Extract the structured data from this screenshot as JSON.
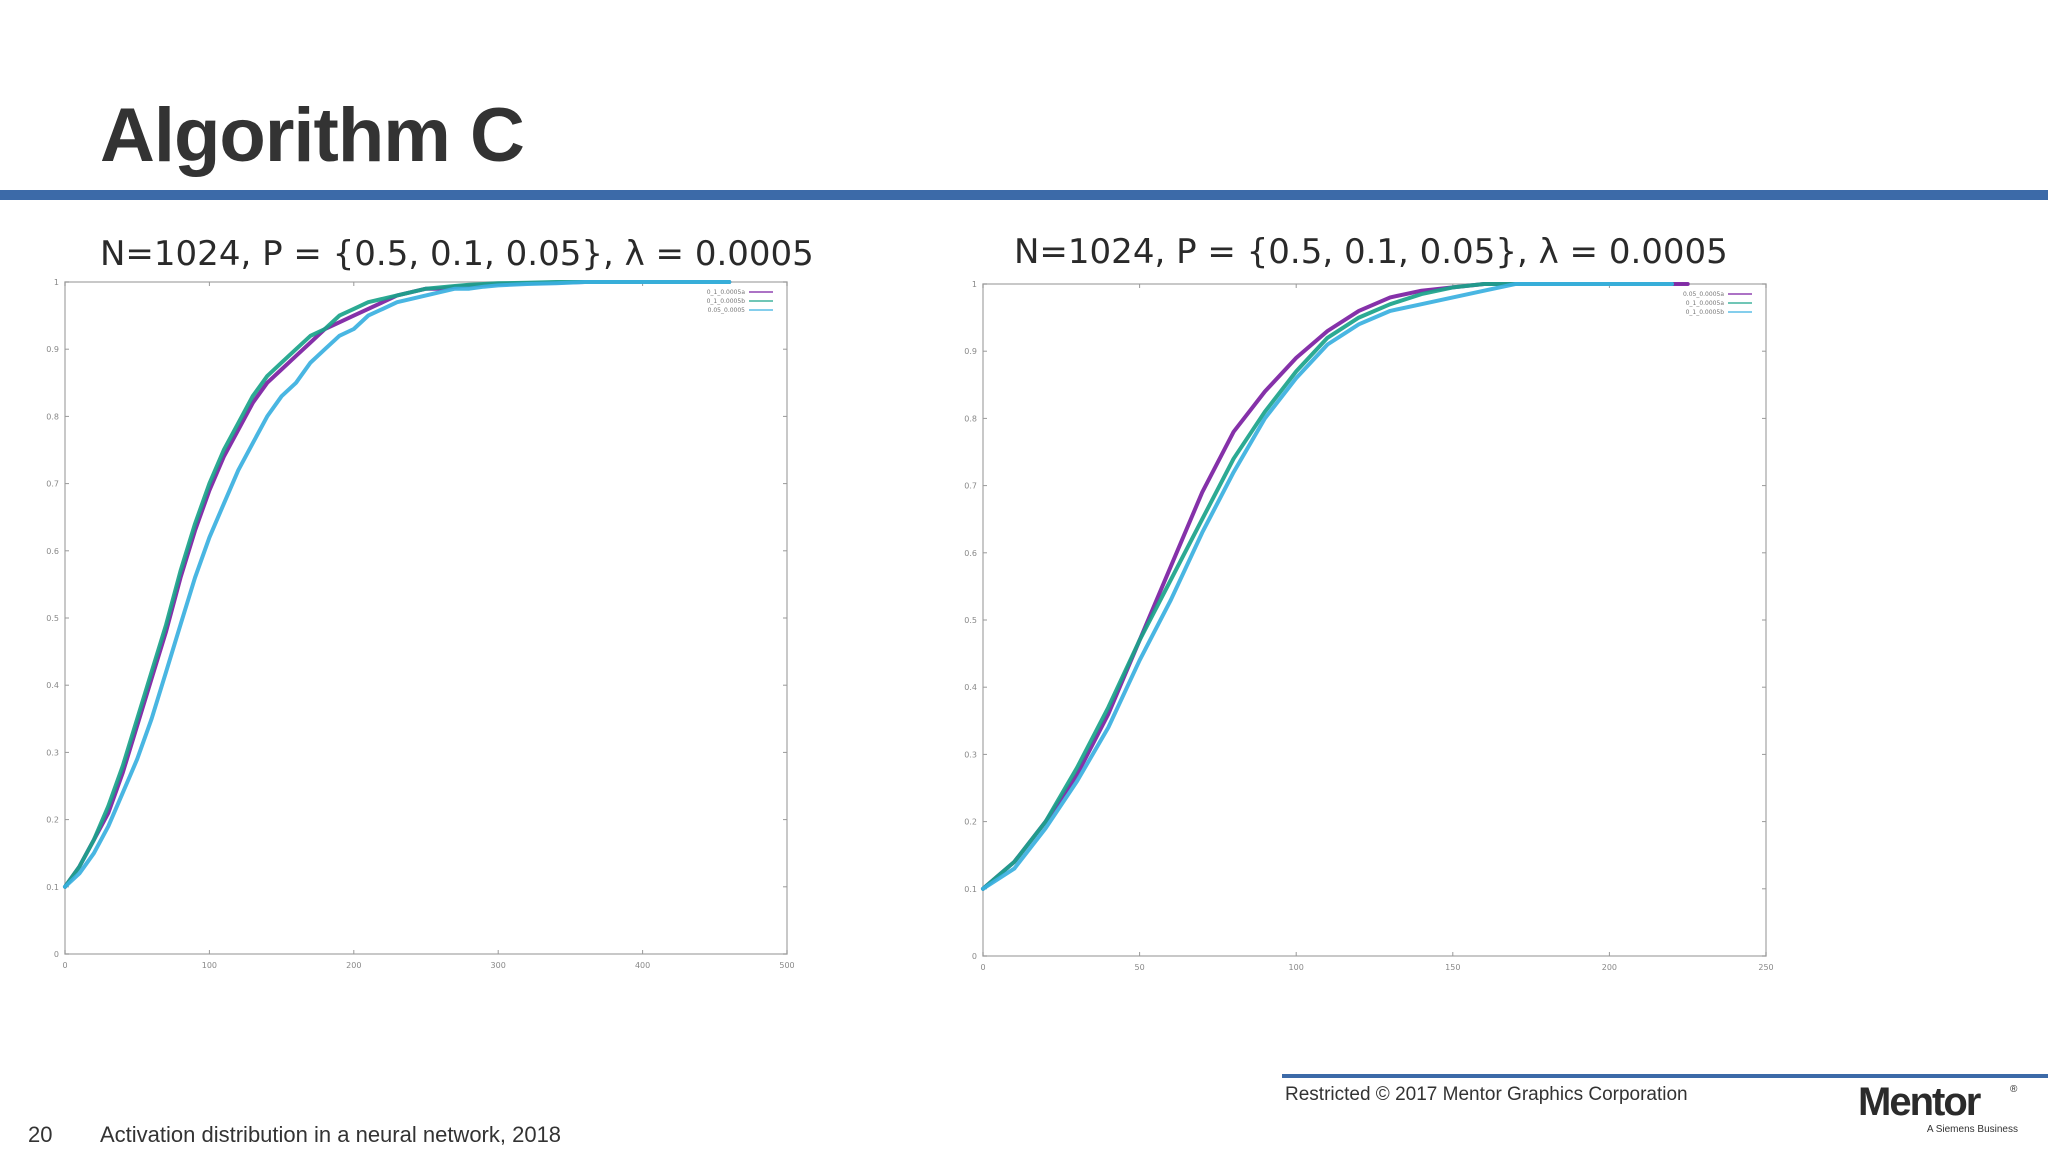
{
  "slide": {
    "title": "Algorithm C",
    "number": "20",
    "footer_note": "Activation distribution in a neural network, 2018",
    "restricted": "Restricted © 2017 Mentor Graphics Corporation",
    "logo": {
      "text": "Mentor",
      "registered": "®",
      "tagline": "A Siemens Business"
    },
    "accent_color": "#3c6aa8"
  },
  "chart_data": [
    {
      "type": "line",
      "title": "N=1024, P = {0.5, 0.1, 0.05},  λ = 0.0005",
      "xlim": [
        0,
        500
      ],
      "ylim": [
        0,
        1
      ],
      "xticks": [
        "0",
        "100",
        "200",
        "300",
        "400",
        "500"
      ],
      "yticks": [
        "0",
        "0.1",
        "0.2",
        "0.3",
        "0.4",
        "0.5",
        "0.6",
        "0.7",
        "0.8",
        "0.9",
        "1"
      ],
      "grid": false,
      "legend": "top-right",
      "series": [
        {
          "name": "0_1_0.0005a",
          "color": "#7b1fa2",
          "x": [
            0,
            10,
            20,
            30,
            40,
            50,
            60,
            70,
            80,
            90,
            100,
            110,
            120,
            130,
            140,
            150,
            160,
            170,
            180,
            190,
            200,
            210,
            220,
            230,
            240,
            250,
            260,
            270,
            280,
            290,
            300,
            320,
            340,
            360,
            380,
            400,
            420,
            440,
            460
          ],
          "y": [
            0.1,
            0.13,
            0.17,
            0.21,
            0.27,
            0.34,
            0.41,
            0.48,
            0.56,
            0.63,
            0.69,
            0.74,
            0.78,
            0.82,
            0.85,
            0.87,
            0.89,
            0.91,
            0.93,
            0.94,
            0.95,
            0.96,
            0.97,
            0.98,
            0.985,
            0.99,
            0.99,
            0.993,
            0.995,
            0.996,
            0.997,
            0.998,
            0.999,
            1,
            1,
            1,
            1,
            1,
            1
          ]
        },
        {
          "name": "0_1_0.0005b",
          "color": "#1aa38a",
          "x": [
            0,
            10,
            20,
            30,
            40,
            50,
            60,
            70,
            80,
            90,
            100,
            110,
            120,
            130,
            140,
            150,
            160,
            170,
            180,
            190,
            200,
            210,
            220,
            230,
            240,
            250,
            260,
            270,
            280,
            290,
            300,
            320,
            340,
            360,
            380,
            400,
            420,
            440,
            460
          ],
          "y": [
            0.1,
            0.13,
            0.17,
            0.22,
            0.28,
            0.35,
            0.42,
            0.49,
            0.57,
            0.64,
            0.7,
            0.75,
            0.79,
            0.83,
            0.86,
            0.88,
            0.9,
            0.92,
            0.93,
            0.95,
            0.96,
            0.97,
            0.975,
            0.98,
            0.985,
            0.99,
            0.992,
            0.994,
            0.996,
            0.997,
            0.998,
            0.999,
            1,
            1,
            1,
            1,
            1,
            1,
            1
          ]
        },
        {
          "name": "0.05_0.0005",
          "color": "#3ab0e0",
          "x": [
            0,
            10,
            20,
            30,
            40,
            50,
            60,
            70,
            80,
            90,
            100,
            110,
            120,
            130,
            140,
            150,
            160,
            170,
            180,
            190,
            200,
            210,
            220,
            230,
            240,
            250,
            260,
            270,
            280,
            290,
            300,
            320,
            340,
            360,
            380,
            400,
            420,
            440,
            460
          ],
          "y": [
            0.1,
            0.12,
            0.15,
            0.19,
            0.24,
            0.29,
            0.35,
            0.42,
            0.49,
            0.56,
            0.62,
            0.67,
            0.72,
            0.76,
            0.8,
            0.83,
            0.85,
            0.88,
            0.9,
            0.92,
            0.93,
            0.95,
            0.96,
            0.97,
            0.975,
            0.98,
            0.985,
            0.99,
            0.99,
            0.993,
            0.995,
            0.997,
            0.998,
            1,
            1,
            1,
            1,
            1,
            1
          ]
        }
      ]
    },
    {
      "type": "line",
      "title": "N=1024, P = {0.5, 0.1, 0.05},  λ = 0.0005",
      "xlim": [
        0,
        250
      ],
      "ylim": [
        0,
        1
      ],
      "xticks": [
        "0",
        "50",
        "100",
        "150",
        "200",
        "250"
      ],
      "yticks": [
        "0",
        "0.1",
        "0.2",
        "0.3",
        "0.4",
        "0.5",
        "0.6",
        "0.7",
        "0.8",
        "0.9",
        "1"
      ],
      "grid": false,
      "legend": "top-right",
      "series": [
        {
          "name": "0.05_0.0005a",
          "color": "#7b1fa2",
          "x": [
            0,
            10,
            20,
            30,
            40,
            50,
            60,
            70,
            80,
            90,
            100,
            110,
            120,
            130,
            140,
            150,
            160,
            170,
            180,
            190,
            200,
            210,
            220,
            225
          ],
          "y": [
            0.1,
            0.14,
            0.2,
            0.27,
            0.36,
            0.47,
            0.58,
            0.69,
            0.78,
            0.84,
            0.89,
            0.93,
            0.96,
            0.98,
            0.99,
            0.995,
            1,
            1,
            1,
            1,
            1,
            1,
            1,
            1
          ]
        },
        {
          "name": "0_1_0.0005a",
          "color": "#1aa38a",
          "x": [
            0,
            10,
            20,
            30,
            40,
            50,
            60,
            70,
            80,
            90,
            100,
            110,
            120,
            130,
            140,
            150,
            160,
            170,
            180,
            190,
            200,
            210,
            220
          ],
          "y": [
            0.1,
            0.14,
            0.2,
            0.28,
            0.37,
            0.47,
            0.56,
            0.65,
            0.74,
            0.81,
            0.87,
            0.92,
            0.95,
            0.97,
            0.985,
            0.995,
            1,
            1,
            1,
            1,
            1,
            1,
            1
          ]
        },
        {
          "name": "0_1_0.0005b",
          "color": "#3ab0e0",
          "x": [
            0,
            10,
            20,
            30,
            40,
            50,
            60,
            70,
            80,
            90,
            100,
            110,
            120,
            130,
            140,
            150,
            160,
            170,
            180,
            190,
            200,
            210,
            220
          ],
          "y": [
            0.1,
            0.13,
            0.19,
            0.26,
            0.34,
            0.44,
            0.53,
            0.63,
            0.72,
            0.8,
            0.86,
            0.91,
            0.94,
            0.96,
            0.97,
            0.98,
            0.99,
            1,
            1,
            1,
            1,
            1,
            1
          ]
        }
      ]
    }
  ]
}
